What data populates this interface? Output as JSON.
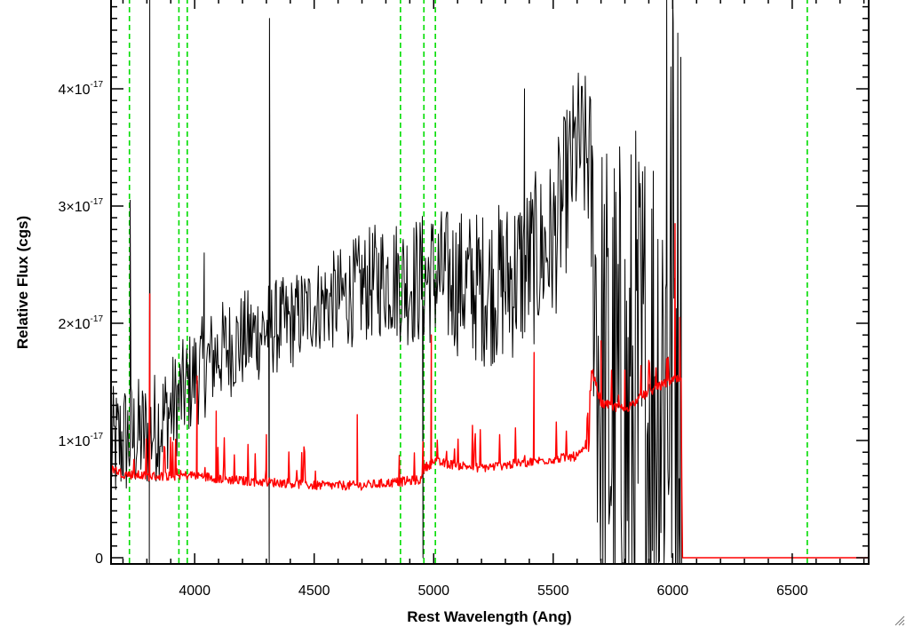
{
  "chart_data": {
    "type": "line",
    "title": "",
    "xlabel": "Rest Wavelength (Ang)",
    "ylabel": "Relative Flux (cgs)",
    "xlim": [
      3650,
      6820
    ],
    "ylim": [
      -1e-18,
      4.7e-17
    ],
    "grid": false,
    "x_ticks": [
      {
        "value": 4000,
        "label": "4000"
      },
      {
        "value": 4500,
        "label": "4500"
      },
      {
        "value": 5000,
        "label": "5000"
      },
      {
        "value": 5500,
        "label": "5500"
      },
      {
        "value": 6000,
        "label": "6000"
      },
      {
        "value": 6500,
        "label": "6500"
      }
    ],
    "y_ticks": [
      {
        "value": 0,
        "label": "0",
        "mantissa": "",
        "exponent": ""
      },
      {
        "value": 1e-17,
        "label": "1×10-17",
        "mantissa": "1×10",
        "exponent": "-17"
      },
      {
        "value": 2e-17,
        "label": "2×10-17",
        "mantissa": "2×10",
        "exponent": "-17"
      },
      {
        "value": 3e-17,
        "label": "3×10-17",
        "mantissa": "3×10",
        "exponent": "-17"
      },
      {
        "value": 4e-17,
        "label": "4×10-17",
        "mantissa": "4×10",
        "exponent": "-17"
      }
    ],
    "vertical_lines": [
      {
        "x": 3727,
        "color": "#00dd00",
        "style": "dashed"
      },
      {
        "x": 3934,
        "color": "#00dd00",
        "style": "dashed"
      },
      {
        "x": 3969,
        "color": "#00dd00",
        "style": "dashed"
      },
      {
        "x": 4861,
        "color": "#00dd00",
        "style": "dashed"
      },
      {
        "x": 4959,
        "color": "#00dd00",
        "style": "dashed"
      },
      {
        "x": 5007,
        "color": "#00dd00",
        "style": "dashed"
      },
      {
        "x": 6563,
        "color": "#00dd00",
        "style": "dashed"
      }
    ],
    "series": [
      {
        "color": "#000000",
        "style": "noisy-spectrum",
        "x_range": [
          3650,
          6040
        ],
        "anchors": [
          [
            3650,
            9e-18
          ],
          [
            3700,
            1e-17
          ],
          [
            3800,
            1.05e-17
          ],
          [
            3900,
            1.25e-17
          ],
          [
            4000,
            1.55e-17
          ],
          [
            4100,
            1.75e-17
          ],
          [
            4200,
            1.85e-17
          ],
          [
            4300,
            1.95e-17
          ],
          [
            4400,
            2e-17
          ],
          [
            4500,
            2.15e-17
          ],
          [
            4600,
            2.2e-17
          ],
          [
            4700,
            2.3e-17
          ],
          [
            4800,
            2.4e-17
          ],
          [
            4900,
            2.35e-17
          ],
          [
            5000,
            2.4e-17
          ],
          [
            5100,
            2.35e-17
          ],
          [
            5200,
            2.3e-17
          ],
          [
            5300,
            2.35e-17
          ],
          [
            5400,
            2.5e-17
          ],
          [
            5500,
            2.7e-17
          ],
          [
            5600,
            3.5e-17
          ],
          [
            5650,
            3.4e-17
          ],
          [
            5700,
            1.3e-17
          ],
          [
            5800,
            1e-17
          ],
          [
            5900,
            1.2e-17
          ],
          [
            6000,
            2e-17
          ],
          [
            6040,
            2e-17
          ]
        ],
        "noise": [
          [
            3650,
            5.5e-18
          ],
          [
            4000,
            4.5e-18
          ],
          [
            4500,
            4e-18
          ],
          [
            5000,
            6e-18
          ],
          [
            5400,
            7.5e-18
          ],
          [
            5650,
            7e-18
          ],
          [
            5700,
            2.5e-17
          ],
          [
            6040,
            3e-17
          ]
        ],
        "spikes": [
          [
            3730,
            3.05e-17
          ],
          [
            3810,
            -5e-18
          ],
          [
            3812,
            5e-17
          ],
          [
            4312,
            -5e-18
          ],
          [
            4313,
            4.6e-17
          ],
          [
            4040,
            2.6e-17
          ],
          [
            4955,
            0.0
          ],
          [
            5380,
            4e-17
          ],
          [
            5975,
            5e-17
          ],
          [
            6000,
            5e-17
          ]
        ]
      },
      {
        "color": "#ff0000",
        "style": "model-spectrum",
        "x_range": [
          3650,
          6820
        ],
        "anchors": [
          [
            3650,
            7.5e-18
          ],
          [
            3700,
            7e-18
          ],
          [
            3800,
            6.8e-18
          ],
          [
            3900,
            6.8e-18
          ],
          [
            4000,
            6.9e-18
          ],
          [
            4100,
            6.6e-18
          ],
          [
            4200,
            6.4e-18
          ],
          [
            4300,
            6.3e-18
          ],
          [
            4400,
            6.2e-18
          ],
          [
            4500,
            6e-18
          ],
          [
            4600,
            6e-18
          ],
          [
            4700,
            6e-18
          ],
          [
            4800,
            6.2e-18
          ],
          [
            4900,
            6.4e-18
          ],
          [
            4950,
            6.5e-18
          ],
          [
            4960,
            7.5e-18
          ],
          [
            5000,
            8e-18
          ],
          [
            5200,
            7.5e-18
          ],
          [
            5400,
            8e-18
          ],
          [
            5600,
            8.5e-18
          ],
          [
            5650,
            9.3e-18
          ],
          [
            5660,
            1.6e-17
          ],
          [
            5700,
            1.3e-17
          ],
          [
            5800,
            1.25e-17
          ],
          [
            5900,
            1.4e-17
          ],
          [
            6000,
            1.5e-17
          ],
          [
            6035,
            1.5e-17
          ],
          [
            6040,
            0.0
          ],
          [
            6820,
            0.0
          ]
        ],
        "spikes": [
          [
            3812,
            2.25e-17
          ],
          [
            4010,
            1.55e-17
          ],
          [
            4090,
            1.25e-17
          ],
          [
            4300,
            1.05e-17
          ],
          [
            4680,
            1.22e-17
          ],
          [
            4990,
            1.9e-17
          ],
          [
            5420,
            1.75e-17
          ],
          [
            5700,
            1.85e-17
          ],
          [
            5800,
            1.6e-17
          ],
          [
            6010,
            2.85e-17
          ],
          [
            6030,
            2.05e-17
          ]
        ]
      }
    ]
  }
}
